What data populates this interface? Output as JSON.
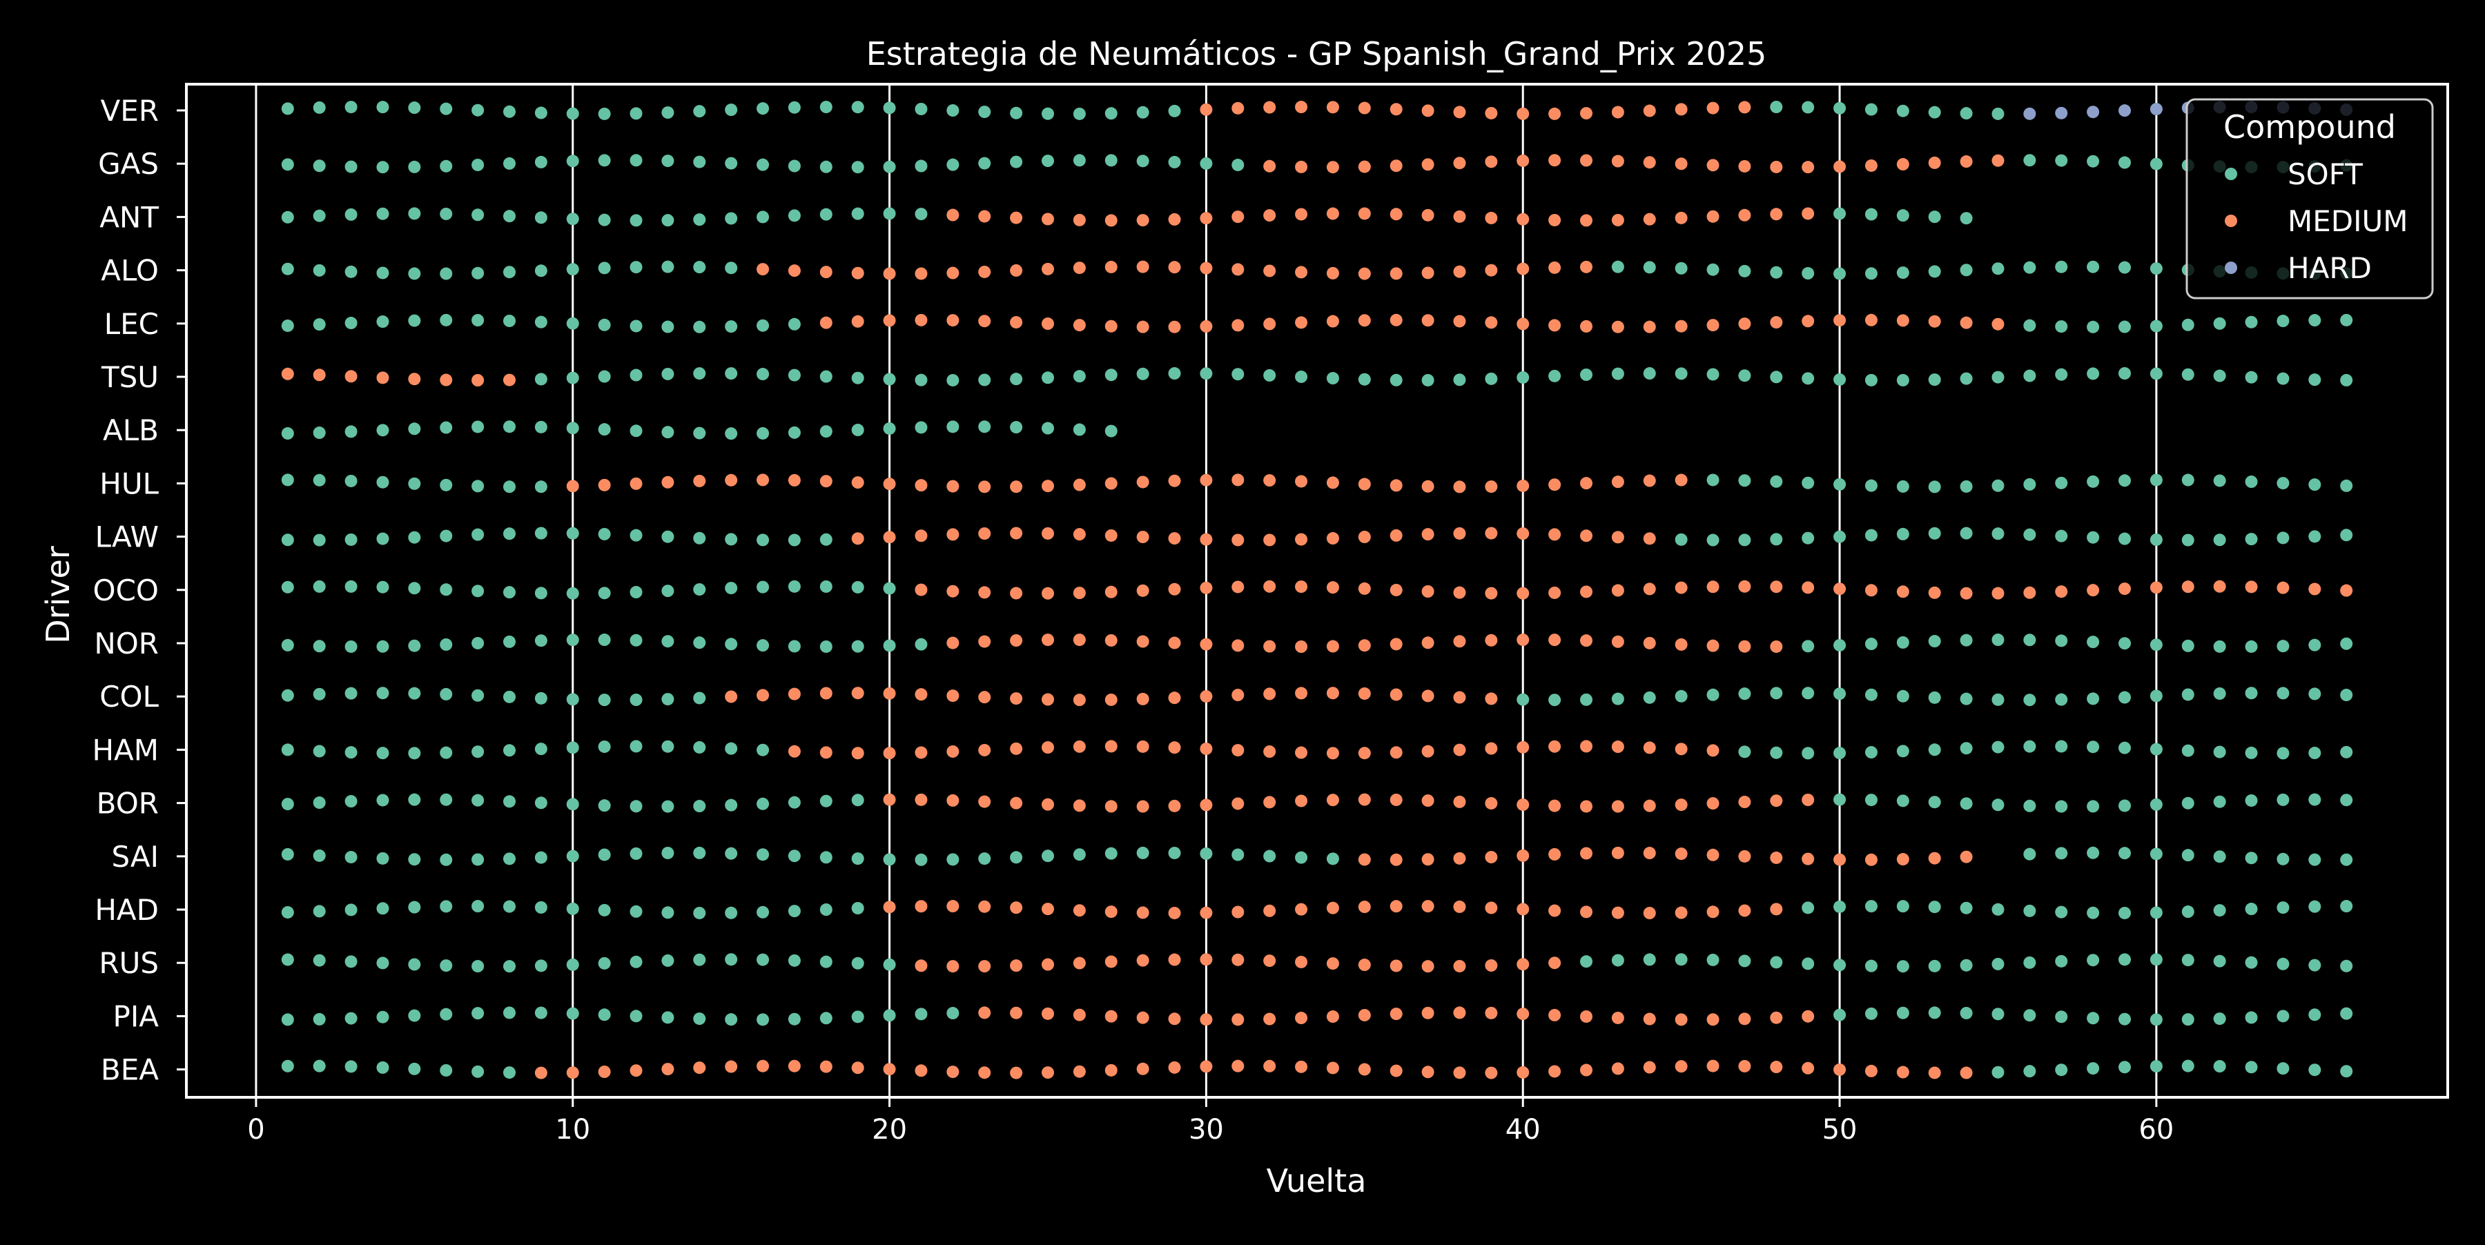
{
  "chart_data": {
    "type": "scatter",
    "title": "Estrategia de Neumáticos - GP Spanish_Grand_Prix 2025",
    "xlabel": "Vuelta",
    "ylabel": "Driver",
    "xlim": [
      -2.2,
      69.2
    ],
    "xticks": [
      0,
      10,
      20,
      30,
      40,
      50,
      60
    ],
    "grid_x": true,
    "grid_y": false,
    "legend": {
      "title": "Compound",
      "placement": "top-right"
    },
    "drivers": [
      "VER",
      "GAS",
      "ANT",
      "ALO",
      "LEC",
      "TSU",
      "ALB",
      "HUL",
      "LAW",
      "OCO",
      "NOR",
      "COL",
      "HAM",
      "BOR",
      "SAI",
      "HAD",
      "RUS",
      "PIA",
      "BEA"
    ],
    "compounds": [
      {
        "name": "SOFT",
        "color": "#66c2a5"
      },
      {
        "name": "MEDIUM",
        "color": "#fc8d62"
      },
      {
        "name": "HARD",
        "color": "#8da0cb"
      }
    ],
    "stints": [
      {
        "driver": "VER",
        "compound": "SOFT",
        "laps": [
          1,
          29
        ]
      },
      {
        "driver": "VER",
        "compound": "MEDIUM",
        "laps": [
          30,
          47
        ]
      },
      {
        "driver": "VER",
        "compound": "SOFT",
        "laps": [
          48,
          55
        ]
      },
      {
        "driver": "VER",
        "compound": "HARD",
        "laps": [
          56,
          66
        ]
      },
      {
        "driver": "GAS",
        "compound": "SOFT",
        "laps": [
          1,
          31
        ]
      },
      {
        "driver": "GAS",
        "compound": "MEDIUM",
        "laps": [
          32,
          55
        ]
      },
      {
        "driver": "GAS",
        "compound": "SOFT",
        "laps": [
          56,
          66
        ]
      },
      {
        "driver": "ANT",
        "compound": "SOFT",
        "laps": [
          1,
          21
        ]
      },
      {
        "driver": "ANT",
        "compound": "MEDIUM",
        "laps": [
          22,
          49
        ]
      },
      {
        "driver": "ANT",
        "compound": "SOFT",
        "laps": [
          50,
          54
        ]
      },
      {
        "driver": "ALO",
        "compound": "SOFT",
        "laps": [
          1,
          15
        ]
      },
      {
        "driver": "ALO",
        "compound": "MEDIUM",
        "laps": [
          16,
          42
        ]
      },
      {
        "driver": "ALO",
        "compound": "SOFT",
        "laps": [
          43,
          66
        ]
      },
      {
        "driver": "LEC",
        "compound": "SOFT",
        "laps": [
          1,
          17
        ]
      },
      {
        "driver": "LEC",
        "compound": "MEDIUM",
        "laps": [
          18,
          55
        ]
      },
      {
        "driver": "LEC",
        "compound": "SOFT",
        "laps": [
          56,
          66
        ]
      },
      {
        "driver": "TSU",
        "compound": "MEDIUM",
        "laps": [
          1,
          8
        ]
      },
      {
        "driver": "TSU",
        "compound": "SOFT",
        "laps": [
          9,
          66
        ]
      },
      {
        "driver": "ALB",
        "compound": "SOFT",
        "laps": [
          1,
          27
        ]
      },
      {
        "driver": "HUL",
        "compound": "SOFT",
        "laps": [
          1,
          9
        ]
      },
      {
        "driver": "HUL",
        "compound": "MEDIUM",
        "laps": [
          10,
          45
        ]
      },
      {
        "driver": "HUL",
        "compound": "SOFT",
        "laps": [
          46,
          66
        ]
      },
      {
        "driver": "LAW",
        "compound": "SOFT",
        "laps": [
          1,
          18
        ]
      },
      {
        "driver": "LAW",
        "compound": "MEDIUM",
        "laps": [
          19,
          44
        ]
      },
      {
        "driver": "LAW",
        "compound": "SOFT",
        "laps": [
          45,
          66
        ]
      },
      {
        "driver": "OCO",
        "compound": "SOFT",
        "laps": [
          1,
          20
        ]
      },
      {
        "driver": "OCO",
        "compound": "MEDIUM",
        "laps": [
          21,
          66
        ]
      },
      {
        "driver": "NOR",
        "compound": "SOFT",
        "laps": [
          1,
          21
        ]
      },
      {
        "driver": "NOR",
        "compound": "MEDIUM",
        "laps": [
          22,
          48
        ]
      },
      {
        "driver": "NOR",
        "compound": "SOFT",
        "laps": [
          49,
          66
        ]
      },
      {
        "driver": "COL",
        "compound": "SOFT",
        "laps": [
          1,
          14
        ]
      },
      {
        "driver": "COL",
        "compound": "MEDIUM",
        "laps": [
          15,
          39
        ]
      },
      {
        "driver": "COL",
        "compound": "SOFT",
        "laps": [
          40,
          66
        ]
      },
      {
        "driver": "HAM",
        "compound": "SOFT",
        "laps": [
          1,
          16
        ]
      },
      {
        "driver": "HAM",
        "compound": "MEDIUM",
        "laps": [
          17,
          46
        ]
      },
      {
        "driver": "HAM",
        "compound": "SOFT",
        "laps": [
          47,
          66
        ]
      },
      {
        "driver": "BOR",
        "compound": "SOFT",
        "laps": [
          1,
          19
        ]
      },
      {
        "driver": "BOR",
        "compound": "MEDIUM",
        "laps": [
          20,
          49
        ]
      },
      {
        "driver": "BOR",
        "compound": "SOFT",
        "laps": [
          50,
          66
        ]
      },
      {
        "driver": "SAI",
        "compound": "SOFT",
        "laps": [
          1,
          34
        ]
      },
      {
        "driver": "SAI",
        "compound": "MEDIUM",
        "laps": [
          35,
          54
        ]
      },
      {
        "driver": "SAI",
        "compound": "SOFT",
        "laps": [
          56,
          66
        ]
      },
      {
        "driver": "HAD",
        "compound": "SOFT",
        "laps": [
          1,
          19
        ]
      },
      {
        "driver": "HAD",
        "compound": "MEDIUM",
        "laps": [
          20,
          48
        ]
      },
      {
        "driver": "HAD",
        "compound": "SOFT",
        "laps": [
          49,
          66
        ]
      },
      {
        "driver": "RUS",
        "compound": "SOFT",
        "laps": [
          1,
          20
        ]
      },
      {
        "driver": "RUS",
        "compound": "MEDIUM",
        "laps": [
          21,
          41
        ]
      },
      {
        "driver": "RUS",
        "compound": "SOFT",
        "laps": [
          42,
          66
        ]
      },
      {
        "driver": "PIA",
        "compound": "SOFT",
        "laps": [
          1,
          22
        ]
      },
      {
        "driver": "PIA",
        "compound": "MEDIUM",
        "laps": [
          23,
          49
        ]
      },
      {
        "driver": "PIA",
        "compound": "SOFT",
        "laps": [
          50,
          66
        ]
      },
      {
        "driver": "BEA",
        "compound": "SOFT",
        "laps": [
          1,
          8
        ]
      },
      {
        "driver": "BEA",
        "compound": "MEDIUM",
        "laps": [
          9,
          54
        ]
      },
      {
        "driver": "BEA",
        "compound": "SOFT",
        "laps": [
          55,
          66
        ]
      }
    ]
  }
}
